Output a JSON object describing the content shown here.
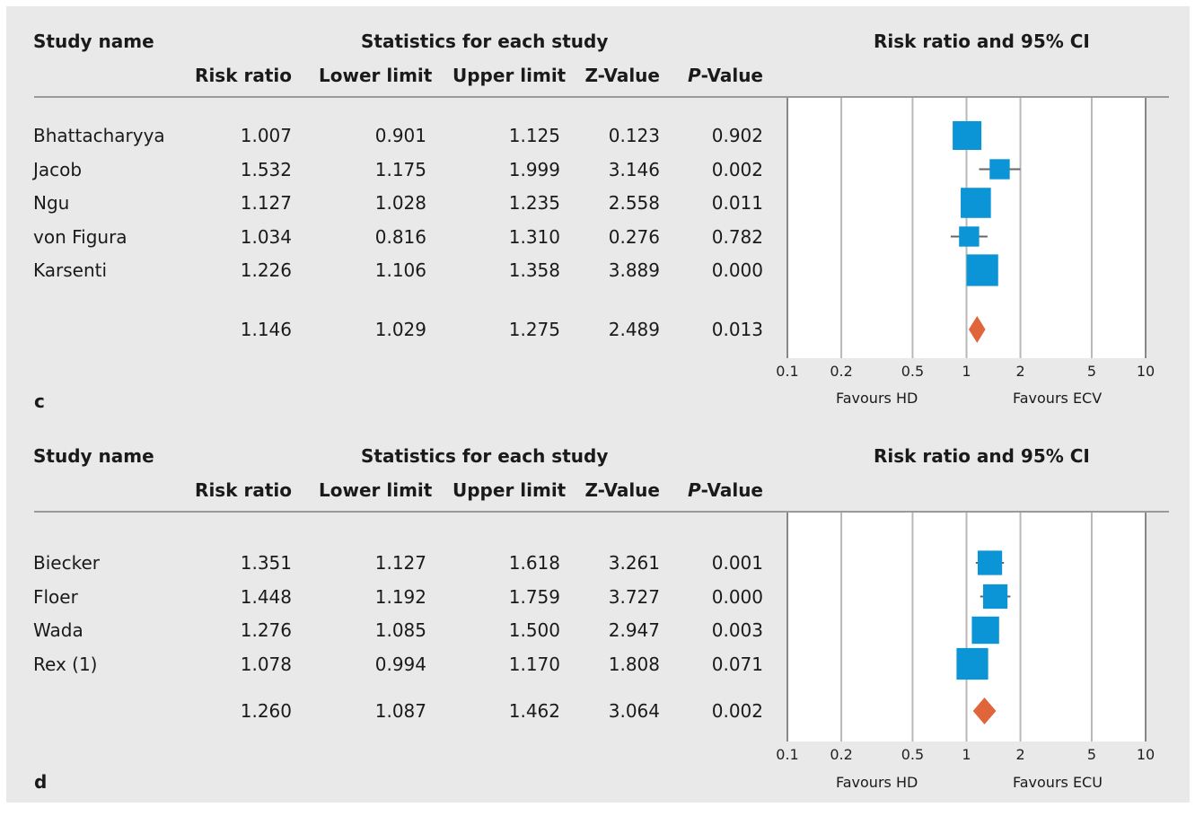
{
  "chart_data": [
    {
      "type": "forest",
      "panel_label": "c",
      "header_study": "Study name",
      "header_stats": "Statistics for each study",
      "header_plot": "Risk ratio and 95% CI",
      "columns": [
        "Risk ratio",
        "Lower limit",
        "Upper limit",
        "Z-Value",
        "-Value"
      ],
      "p_prefix": "P",
      "studies": [
        {
          "name": "Bhattacharyya",
          "rr": "1.007",
          "lower": "0.901",
          "upper": "1.125",
          "z": "0.123",
          "p": "0.902",
          "rr_v": 1.007,
          "lo_v": 0.901,
          "hi_v": 1.125,
          "weight": 1.0
        },
        {
          "name": "Jacob",
          "rr": "1.532",
          "lower": "1.175",
          "upper": "1.999",
          "z": "3.146",
          "p": "0.002",
          "rr_v": 1.532,
          "lo_v": 1.175,
          "hi_v": 1.999,
          "weight": 0.7
        },
        {
          "name": "Ngu",
          "rr": "1.127",
          "lower": "1.028",
          "upper": "1.235",
          "z": "2.558",
          "p": "0.011",
          "rr_v": 1.127,
          "lo_v": 1.028,
          "hi_v": 1.235,
          "weight": 1.05
        },
        {
          "name": "von Figura",
          "rr": "1.034",
          "lower": "0.816",
          "upper": "1.310",
          "z": "0.276",
          "p": "0.782",
          "rr_v": 1.034,
          "lo_v": 0.816,
          "hi_v": 1.31,
          "weight": 0.7
        },
        {
          "name": "Karsenti",
          "rr": "1.226",
          "lower": "1.106",
          "upper": "1.358",
          "z": "3.889",
          "p": "0.000",
          "rr_v": 1.226,
          "lo_v": 1.106,
          "hi_v": 1.358,
          "weight": 1.1
        }
      ],
      "summary": {
        "rr": "1.146",
        "lower": "1.029",
        "upper": "1.275",
        "z": "2.489",
        "p": "0.013",
        "rr_v": 1.146,
        "lo_v": 1.029,
        "hi_v": 1.275
      },
      "x_scale": "log",
      "x_ticks": [
        "0.1",
        "0.2",
        "0.5",
        "1",
        "2",
        "5",
        "10"
      ],
      "x_tick_values": [
        0.1,
        0.2,
        0.5,
        1,
        2,
        5,
        10
      ],
      "xlim": [
        0.1,
        10
      ],
      "favours_left": "Favours HD",
      "favours_right": "Favours ECV",
      "colors": {
        "square": "#0b95d6",
        "diamond": "#e0653a",
        "grid": "#b8b8b8",
        "line": "#666666"
      }
    },
    {
      "type": "forest",
      "panel_label": "d",
      "header_study": "Study name",
      "header_stats": "Statistics for each study",
      "header_plot": "Risk ratio and 95% CI",
      "columns": [
        "Risk ratio",
        "Lower limit",
        "Upper limit",
        "Z-Value",
        "-Value"
      ],
      "p_prefix": "P",
      "studies": [
        {
          "name": "Biecker",
          "rr": "1.351",
          "lower": "1.127",
          "upper": "1.618",
          "z": "3.261",
          "p": "0.001",
          "rr_v": 1.351,
          "lo_v": 1.127,
          "hi_v": 1.618,
          "weight": 0.85
        },
        {
          "name": "Floer",
          "rr": "1.448",
          "lower": "1.192",
          "upper": "1.759",
          "z": "3.727",
          "p": "0.000",
          "rr_v": 1.448,
          "lo_v": 1.192,
          "hi_v": 1.759,
          "weight": 0.85
        },
        {
          "name": "Wada",
          "rr": "1.276",
          "lower": "1.085",
          "upper": "1.500",
          "z": "2.947",
          "p": "0.003",
          "rr_v": 1.276,
          "lo_v": 1.085,
          "hi_v": 1.5,
          "weight": 0.95
        },
        {
          "name": "Rex (1)",
          "rr": "1.078",
          "lower": "0.994",
          "upper": "1.170",
          "z": "1.808",
          "p": "0.071",
          "rr_v": 1.078,
          "lo_v": 0.994,
          "hi_v": 1.17,
          "weight": 1.1
        }
      ],
      "summary": {
        "rr": "1.260",
        "lower": "1.087",
        "upper": "1.462",
        "z": "3.064",
        "p": "0.002",
        "rr_v": 1.26,
        "lo_v": 1.087,
        "hi_v": 1.462
      },
      "x_scale": "log",
      "x_ticks": [
        "0.1",
        "0.2",
        "0.5",
        "1",
        "2",
        "5",
        "10"
      ],
      "x_tick_values": [
        0.1,
        0.2,
        0.5,
        1,
        2,
        5,
        10
      ],
      "xlim": [
        0.1,
        10
      ],
      "favours_left": "Favours HD",
      "favours_right": "Favours ECU",
      "colors": {
        "square": "#0b95d6",
        "diamond": "#e0653a",
        "grid": "#b8b8b8",
        "line": "#666666"
      }
    }
  ]
}
